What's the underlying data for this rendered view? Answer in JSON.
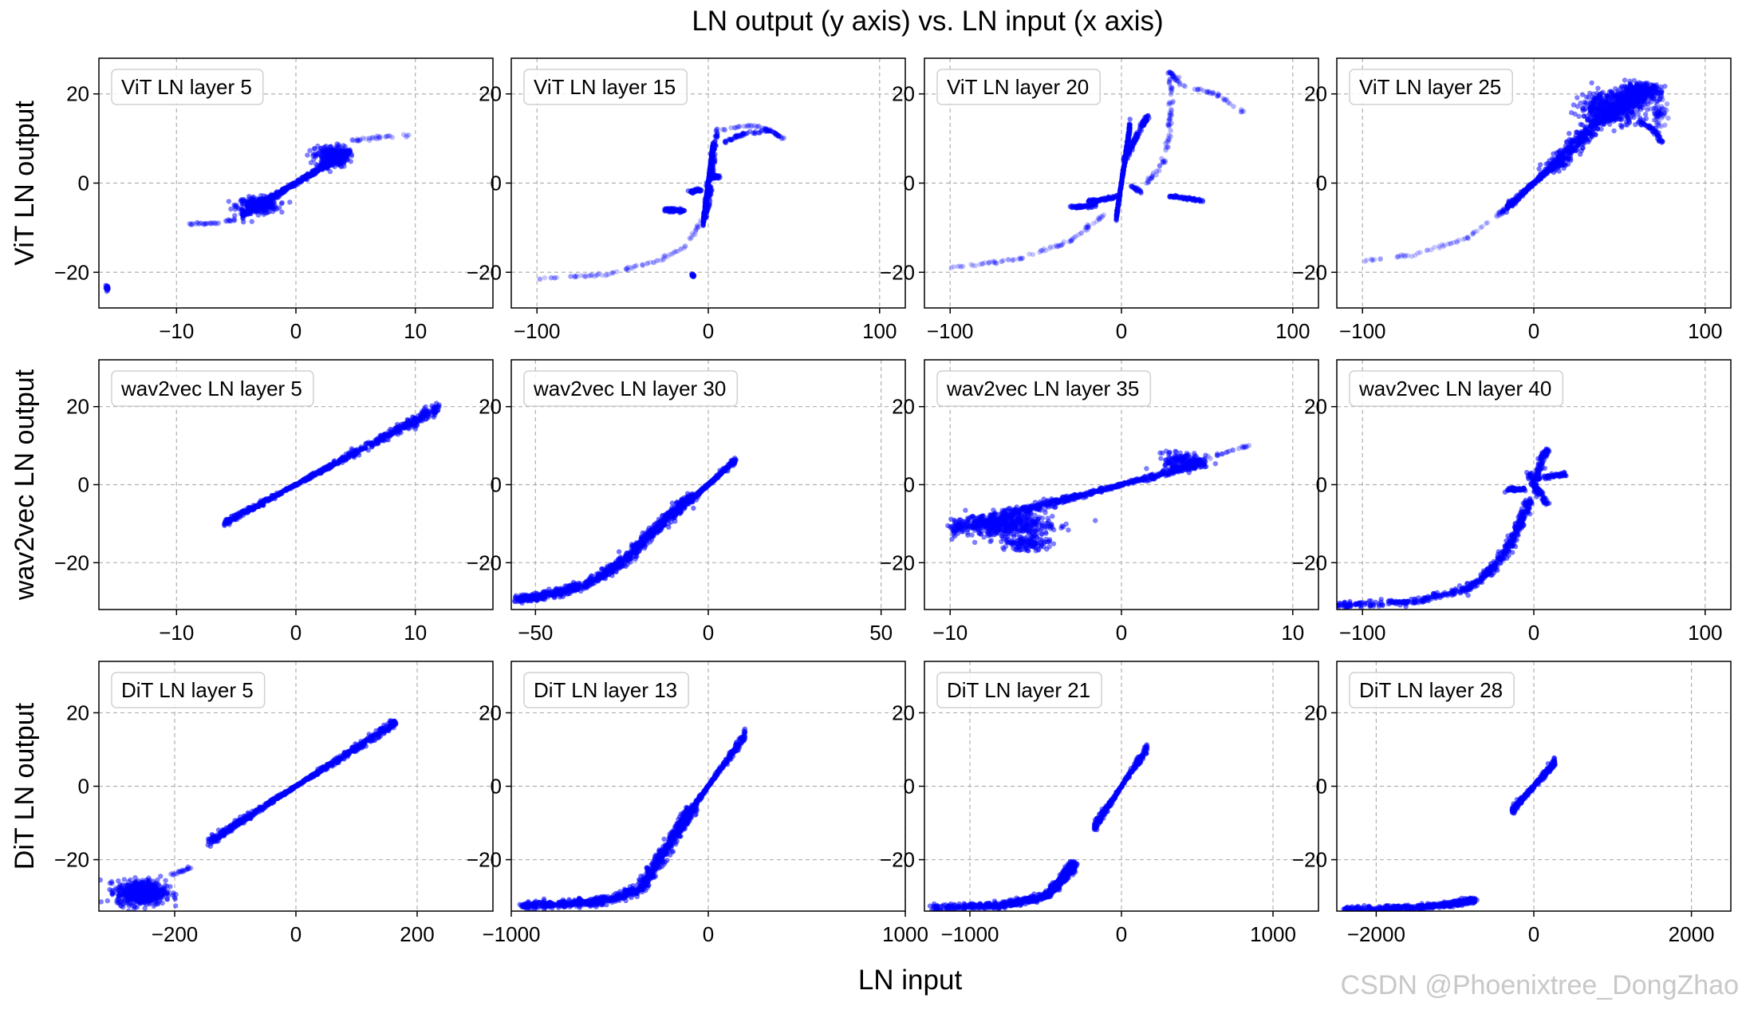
{
  "figure": {
    "title": "LN output (y axis) vs. LN input (x axis)",
    "xlabel": "LN input",
    "watermark": "CSDN @Phoenixtree_DongZhao",
    "point_color": "#0000ff"
  },
  "chart_data": [
    {
      "type": "scatter",
      "title": "ViT LN layer 5",
      "ylabel": "ViT LN output",
      "xlim": [
        -16.5,
        16.5
      ],
      "ylim": [
        -28,
        28
      ],
      "xticks": [
        -10,
        0,
        10
      ],
      "yticks": [
        20,
        0,
        -20
      ],
      "grid": true,
      "features": [
        {
          "kind": "band",
          "x0": -4.5,
          "x1": 4.5,
          "slope": 1.6,
          "halfwidth": 0.08,
          "floor": 0.4,
          "dens": 520
        },
        {
          "kind": "blob",
          "cx": -3.2,
          "cy": -5.0,
          "rx": 1.7,
          "ry": 1.8,
          "n": 260
        },
        {
          "kind": "blob",
          "cx": 3.0,
          "cy": 6.0,
          "rx": 1.4,
          "ry": 2.4,
          "n": 240
        },
        {
          "kind": "curve",
          "pts": [
            [
              -9,
              -9.2
            ],
            [
              -7,
              -9
            ],
            [
              -5,
              -8.2
            ]
          ],
          "w": 0.6,
          "n": 45,
          "alpha": 0.25
        },
        {
          "kind": "curve",
          "pts": [
            [
              4.5,
              9.5
            ],
            [
              7,
              10.2
            ],
            [
              9.5,
              10.8
            ]
          ],
          "w": 0.6,
          "n": 35,
          "alpha": 0.25
        },
        {
          "kind": "blob",
          "cx": -15.8,
          "cy": -23.5,
          "rx": 0.15,
          "ry": 0.5,
          "n": 25
        }
      ]
    },
    {
      "type": "scatter",
      "title": "ViT LN layer 15",
      "ylabel": "",
      "xlim": [
        -115,
        115
      ],
      "ylim": [
        -28,
        28
      ],
      "xticks": [
        -100,
        0,
        100
      ],
      "yticks": [
        20,
        0,
        -20
      ],
      "grid": true,
      "features": [
        {
          "kind": "band",
          "x0": -3,
          "x1": 3,
          "slope": 3.0,
          "halfwidth": 0.06,
          "floor": 0.5,
          "dens": 320
        },
        {
          "kind": "curve",
          "pts": [
            [
              -2,
              -8
            ],
            [
              0,
              -3
            ],
            [
              2,
              2
            ],
            [
              3,
              6
            ],
            [
              5,
              12
            ]
          ],
          "w": 0.6,
          "n": 140
        },
        {
          "kind": "curve",
          "pts": [
            [
              -15,
              -6.2
            ],
            [
              -25,
              -6
            ]
          ],
          "w": 0.7,
          "n": 70
        },
        {
          "kind": "curve",
          "pts": [
            [
              -10,
              -2
            ],
            [
              -5,
              -1.5
            ]
          ],
          "w": 0.6,
          "n": 50
        },
        {
          "kind": "curve",
          "pts": [
            [
              2,
              1.2
            ],
            [
              6,
              1.5
            ]
          ],
          "w": 0.6,
          "n": 45
        },
        {
          "kind": "curve",
          "pts": [
            [
              8,
              9
            ],
            [
              20,
              11
            ],
            [
              35,
              11.8
            ],
            [
              44,
              10
            ]
          ],
          "w": 0.5,
          "n": 70,
          "alpha": 0.45
        },
        {
          "kind": "curve",
          "pts": [
            [
              8,
              12
            ],
            [
              25,
              13
            ],
            [
              40,
              11.5
            ]
          ],
          "w": 0.4,
          "n": 30,
          "alpha": 0.3
        },
        {
          "kind": "curve",
          "pts": [
            [
              -100,
              -21.5
            ],
            [
              -60,
              -20.5
            ],
            [
              -30,
              -17.5
            ],
            [
              -12,
              -14
            ],
            [
              -4,
              -8
            ]
          ],
          "w": 0.5,
          "n": 90,
          "alpha": 0.22
        },
        {
          "kind": "blob",
          "cx": -9,
          "cy": -20.7,
          "rx": 0.8,
          "ry": 0.5,
          "n": 20
        }
      ]
    },
    {
      "type": "scatter",
      "title": "ViT LN layer 20",
      "ylabel": "",
      "xlim": [
        -115,
        115
      ],
      "ylim": [
        -28,
        28
      ],
      "xticks": [
        -100,
        0,
        100
      ],
      "yticks": [
        20,
        0,
        -20
      ],
      "grid": true,
      "features": [
        {
          "kind": "band",
          "x0": -3,
          "x1": 5,
          "slope": 2.6,
          "halfwidth": 0.06,
          "floor": 0.5,
          "dens": 300
        },
        {
          "kind": "curve",
          "pts": [
            [
              2,
              5
            ],
            [
              8,
              10
            ],
            [
              15,
              15
            ]
          ],
          "w": 0.6,
          "n": 110
        },
        {
          "kind": "curve",
          "pts": [
            [
              -15,
              -5
            ],
            [
              -30,
              -5.5
            ]
          ],
          "w": 0.7,
          "n": 60
        },
        {
          "kind": "curve",
          "pts": [
            [
              -3,
              -3
            ],
            [
              -12,
              -3.8
            ],
            [
              -20,
              -4.2
            ]
          ],
          "w": 0.6,
          "n": 70
        },
        {
          "kind": "curve",
          "pts": [
            [
              5,
              -0.5
            ],
            [
              12,
              -2
            ]
          ],
          "w": 0.5,
          "n": 25,
          "alpha": 0.4
        },
        {
          "kind": "curve",
          "pts": [
            [
              28,
              -3
            ],
            [
              40,
              -3.5
            ],
            [
              47,
              -4
            ]
          ],
          "w": 0.6,
          "n": 60
        },
        {
          "kind": "curve",
          "pts": [
            [
              15,
              0
            ],
            [
              25,
              5
            ],
            [
              28,
              12
            ],
            [
              29,
              20
            ],
            [
              28,
              25
            ],
            [
              35,
              22
            ],
            [
              55,
              20
            ],
            [
              75,
              15
            ]
          ],
          "w": 0.5,
          "n": 130,
          "alpha": 0.3
        },
        {
          "kind": "curve",
          "pts": [
            [
              -100,
              -19
            ],
            [
              -60,
              -17
            ],
            [
              -30,
              -13
            ],
            [
              -10,
              -7
            ]
          ],
          "w": 0.5,
          "n": 90,
          "alpha": 0.22
        }
      ]
    },
    {
      "type": "scatter",
      "title": "ViT LN layer 25",
      "ylabel": "",
      "xlim": [
        -115,
        115
      ],
      "ylim": [
        -28,
        28
      ],
      "xticks": [
        -100,
        0,
        100
      ],
      "yticks": [
        20,
        0,
        -20
      ],
      "grid": true,
      "features": [
        {
          "kind": "band",
          "x0": -16,
          "x1": 15,
          "slope": 0.35,
          "halfwidth": 0.08,
          "floor": 0.4,
          "dens": 260
        },
        {
          "kind": "curve",
          "pts": [
            [
              10,
              3
            ],
            [
              22,
              8
            ],
            [
              35,
              13
            ],
            [
              50,
              17
            ],
            [
              62,
              20
            ]
          ],
          "w": 2.4,
          "n": 520
        },
        {
          "kind": "blob",
          "cx": 45,
          "cy": 17,
          "rx": 18,
          "ry": 3.6,
          "n": 420
        },
        {
          "kind": "blob",
          "cx": 62,
          "cy": 20.5,
          "rx": 12,
          "ry": 1.8,
          "n": 320
        },
        {
          "kind": "curve",
          "pts": [
            [
              60,
              14
            ],
            [
              70,
              12
            ],
            [
              75,
              9
            ]
          ],
          "w": 0.7,
          "n": 50
        },
        {
          "kind": "blob",
          "cx": 73,
          "cy": 16,
          "rx": 4,
          "ry": 3.5,
          "n": 60,
          "alpha": 0.35
        },
        {
          "kind": "curve",
          "pts": [
            [
              -100,
              -17.5
            ],
            [
              -70,
              -16
            ],
            [
              -40,
              -12.5
            ],
            [
              -20,
              -7
            ],
            [
              -15,
              -5
            ]
          ],
          "w": 0.5,
          "n": 85,
          "alpha": 0.22
        }
      ]
    },
    {
      "type": "scatter",
      "title": "wav2vec LN layer 5",
      "ylabel": "wav2vec LN output",
      "xlim": [
        -16.5,
        16.5
      ],
      "ylim": [
        -32,
        32
      ],
      "xticks": [
        -10,
        0,
        10
      ],
      "yticks": [
        20,
        0,
        -20
      ],
      "grid": true,
      "features": [
        {
          "kind": "band",
          "x0": -6,
          "x1": 12,
          "slope": 1.65,
          "halfwidth": 0.07,
          "floor": 0.3,
          "dens": 700
        }
      ]
    },
    {
      "type": "scatter",
      "title": "wav2vec LN layer 30",
      "ylabel": "",
      "xlim": [
        -57,
        57
      ],
      "ylim": [
        -32,
        32
      ],
      "xticks": [
        -50,
        0,
        50
      ],
      "yticks": [
        20,
        0,
        -20
      ],
      "grid": true,
      "features": [
        {
          "kind": "band",
          "x0": -5,
          "x1": 8,
          "slope": 0.8,
          "halfwidth": 0.08,
          "floor": 0.3,
          "dens": 260
        },
        {
          "kind": "curve",
          "pts": [
            [
              -55,
              -29.5
            ],
            [
              -45,
              -28
            ],
            [
              -35,
              -25.5
            ],
            [
              -25,
              -20
            ],
            [
              -17,
              -13
            ],
            [
              -10,
              -7
            ],
            [
              -5,
              -3
            ]
          ],
          "w": 1.6,
          "n": 900
        }
      ]
    },
    {
      "type": "scatter",
      "title": "wav2vec LN layer 35",
      "ylabel": "",
      "xlim": [
        -11.5,
        11.5
      ],
      "ylim": [
        -32,
        32
      ],
      "xticks": [
        -10,
        0,
        10
      ],
      "yticks": [
        20,
        0,
        -20
      ],
      "grid": true,
      "features": [
        {
          "kind": "band",
          "x0": -10,
          "x1": 5,
          "slope": 1.15,
          "halfwidth": 0.15,
          "floor": 0.3,
          "dens": 700
        },
        {
          "kind": "blob",
          "cx": -6.5,
          "cy": -10.5,
          "rx": 2.6,
          "ry": 3.2,
          "n": 420
        },
        {
          "kind": "blob",
          "cx": -5.5,
          "cy": -15,
          "rx": 1.5,
          "ry": 1.8,
          "n": 120
        },
        {
          "kind": "blob",
          "cx": 3.5,
          "cy": 6,
          "rx": 1.2,
          "ry": 2.2,
          "n": 150
        },
        {
          "kind": "curve",
          "pts": [
            [
              5,
              7
            ],
            [
              7.5,
              10
            ]
          ],
          "w": 0.5,
          "n": 25,
          "alpha": 0.3
        }
      ]
    },
    {
      "type": "scatter",
      "title": "wav2vec LN layer 40",
      "ylabel": "",
      "xlim": [
        -115,
        115
      ],
      "ylim": [
        -32,
        32
      ],
      "xticks": [
        -100,
        0,
        100
      ],
      "yticks": [
        20,
        0,
        -20
      ],
      "grid": true,
      "features": [
        {
          "kind": "curve",
          "pts": [
            [
              -3,
              3
            ],
            [
              3,
              -3
            ]
          ],
          "w": 0.8,
          "n": 40
        },
        {
          "kind": "curve",
          "pts": [
            [
              0,
              0
            ],
            [
              5,
              7
            ],
            [
              8,
              9
            ]
          ],
          "w": 0.8,
          "n": 90
        },
        {
          "kind": "curve",
          "pts": [
            [
              0,
              0
            ],
            [
              5,
              -3
            ],
            [
              8,
              -5
            ]
          ],
          "w": 0.7,
          "n": 60
        },
        {
          "kind": "curve",
          "pts": [
            [
              0,
              1.5
            ],
            [
              10,
              2.2
            ],
            [
              20,
              2.7
            ]
          ],
          "w": 0.7,
          "n": 80
        },
        {
          "kind": "curve",
          "pts": [
            [
              -15,
              -1.3
            ],
            [
              -5,
              -1.1
            ]
          ],
          "w": 0.7,
          "n": 60
        },
        {
          "kind": "curve",
          "pts": [
            [
              -115,
              -31
            ],
            [
              -70,
              -30
            ],
            [
              -40,
              -27
            ],
            [
              -25,
              -22
            ],
            [
              -15,
              -16
            ],
            [
              -8,
              -10
            ],
            [
              -3,
              -4
            ]
          ],
          "w": 1.2,
          "n": 520
        }
      ]
    },
    {
      "type": "scatter",
      "title": "DiT LN layer 5",
      "ylabel": "DiT LN output",
      "xlim": [
        -325,
        325
      ],
      "ylim": [
        -34,
        34
      ],
      "xticks": [
        -200,
        0,
        200
      ],
      "yticks": [
        20,
        0,
        -20
      ],
      "grid": true,
      "features": [
        {
          "kind": "band",
          "x0": -145,
          "x1": 165,
          "slope": 0.105,
          "halfwidth": 0.07,
          "floor": 0.3,
          "dens": 700
        },
        {
          "kind": "blob",
          "cx": -255,
          "cy": -29,
          "rx": 40,
          "ry": 3.3,
          "n": 620
        },
        {
          "kind": "curve",
          "pts": [
            [
              -205,
              -24
            ],
            [
              -170,
              -22
            ]
          ],
          "w": 0.5,
          "n": 25,
          "alpha": 0.3
        }
      ]
    },
    {
      "type": "scatter",
      "title": "DiT LN layer 13",
      "ylabel": "",
      "xlim": [
        -1000,
        1000
      ],
      "ylim": [
        -34,
        34
      ],
      "xticks": [
        -1000,
        0,
        1000
      ],
      "yticks": [
        20,
        0,
        -20
      ],
      "grid": true,
      "features": [
        {
          "kind": "band",
          "x0": -200,
          "x1": 190,
          "slope": 0.075,
          "halfwidth": 0.1,
          "floor": 0.3,
          "dens": 380
        },
        {
          "kind": "curve",
          "pts": [
            [
              -950,
              -32.5
            ],
            [
              -700,
              -32
            ],
            [
              -500,
              -31
            ],
            [
              -350,
              -28
            ],
            [
              -250,
              -20
            ],
            [
              -150,
              -12
            ],
            [
              -80,
              -6
            ]
          ],
          "w": 1.5,
          "n": 850
        }
      ]
    },
    {
      "type": "scatter",
      "title": "DiT LN layer 21",
      "ylabel": "",
      "xlim": [
        -1300,
        1300
      ],
      "ylim": [
        -34,
        34
      ],
      "xticks": [
        -1000,
        0,
        1000
      ],
      "yticks": [
        20,
        0,
        -20
      ],
      "grid": true,
      "features": [
        {
          "kind": "band",
          "x0": -180,
          "x1": 170,
          "slope": 0.062,
          "halfwidth": 0.1,
          "floor": 0.4,
          "dens": 300
        },
        {
          "kind": "curve",
          "pts": [
            [
              -1250,
              -33
            ],
            [
              -800,
              -32.5
            ],
            [
              -500,
              -30
            ],
            [
              -380,
              -25
            ],
            [
              -320,
              -21
            ]
          ],
          "w": 1.3,
          "n": 650
        }
      ]
    },
    {
      "type": "scatter",
      "title": "DiT LN layer 28",
      "ylabel": "",
      "xlim": [
        -2500,
        2500
      ],
      "ylim": [
        -34,
        34
      ],
      "xticks": [
        -2000,
        0,
        2000
      ],
      "yticks": [
        20,
        0,
        -20
      ],
      "grid": true,
      "features": [
        {
          "kind": "band",
          "x0": -280,
          "x1": 270,
          "slope": 0.024,
          "halfwidth": 0.1,
          "floor": 0.5,
          "dens": 300
        },
        {
          "kind": "curve",
          "pts": [
            [
              -2400,
              -33.5
            ],
            [
              -1500,
              -33
            ],
            [
              -1000,
              -32
            ],
            [
              -750,
              -31
            ]
          ],
          "w": 1.0,
          "n": 500
        }
      ]
    }
  ]
}
